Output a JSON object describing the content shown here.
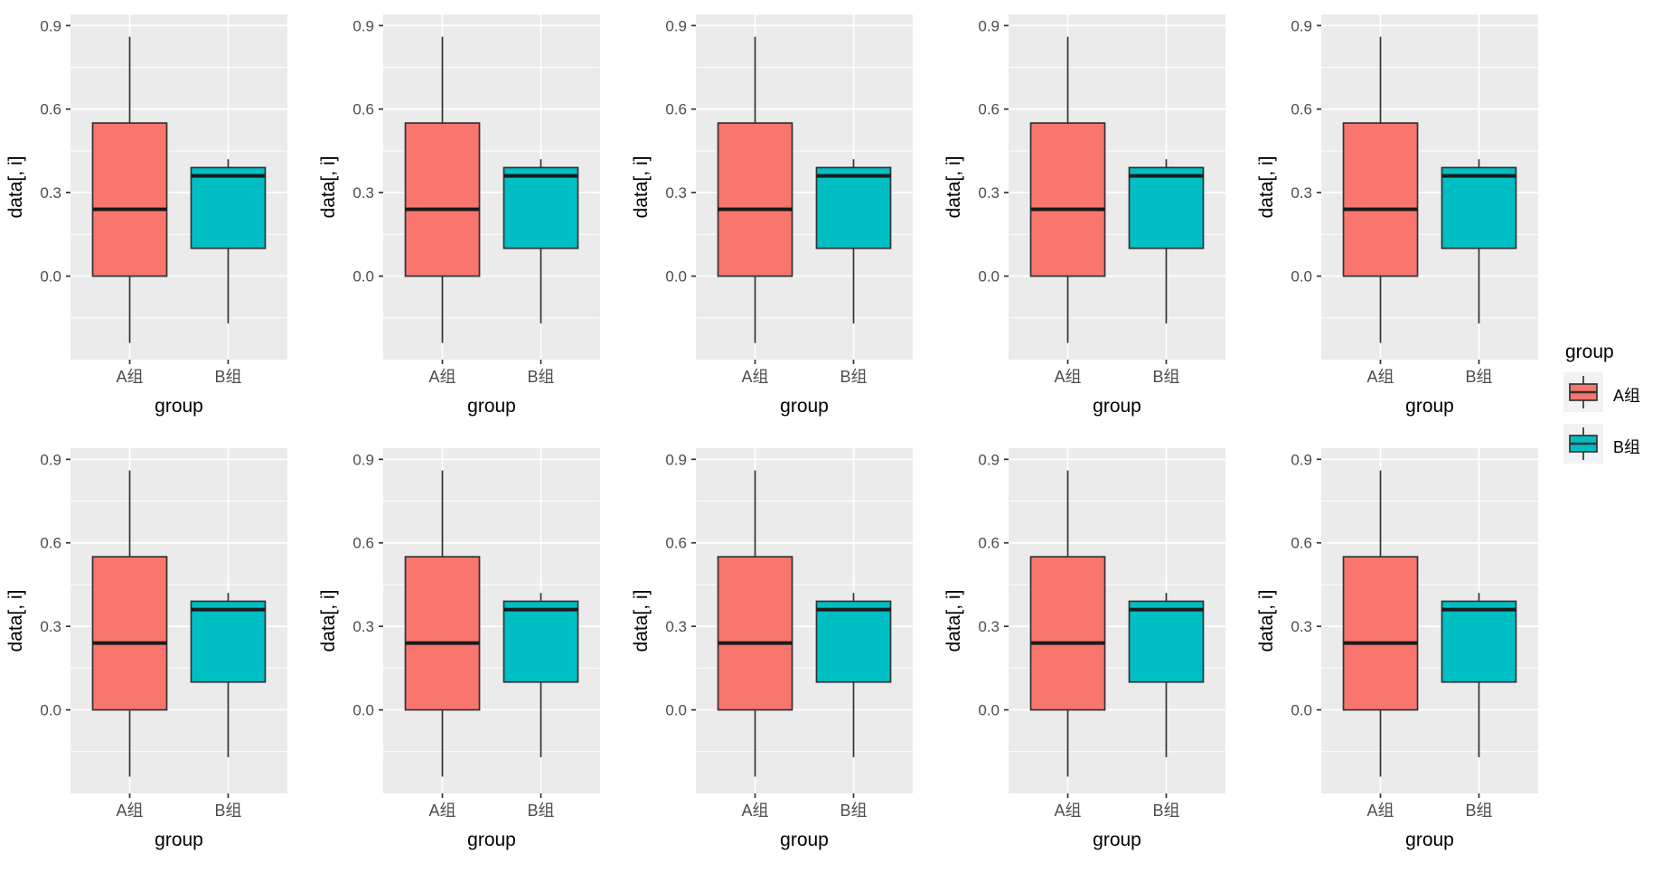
{
  "style": {
    "background": "#FFFFFF",
    "panel_bg": "#EBEBEB",
    "grid_major_color": "#FFFFFF",
    "grid_minor_color": "#FFFFFF",
    "tick_color": "#333333",
    "tick_text_color": "#4D4D4D",
    "axis_title_color": "#000000",
    "box_stroke": "#333333",
    "median_color": "#1A1A1A",
    "legend_key_bg": "#F2F2F2"
  },
  "chart_data": {
    "type": "boxplot",
    "grid": {
      "rows": 2,
      "cols": 5,
      "panels": 10,
      "identical_panels": true
    },
    "title": "",
    "xlabel": "group",
    "ylabel": "data[, i]",
    "categories": [
      "A组",
      "B组"
    ],
    "yticks": [
      0.0,
      0.3,
      0.6,
      0.9
    ],
    "ytick_labels": [
      "0.0",
      "0.3",
      "0.6",
      "0.9"
    ],
    "yticks_minor": [
      -0.15,
      0.15,
      0.45,
      0.75
    ],
    "ylim": [
      -0.3,
      0.94
    ],
    "grid_on": true,
    "legend_position": "right",
    "series": [
      {
        "name": "A组",
        "fill": "#F8766D",
        "stats": {
          "whisker_low": -0.24,
          "q1": 0.0,
          "median": 0.24,
          "q3": 0.55,
          "whisker_high": 0.86
        }
      },
      {
        "name": "B组",
        "fill": "#00BFC4",
        "stats": {
          "whisker_low": -0.17,
          "q1": 0.1,
          "median": 0.36,
          "q3": 0.39,
          "whisker_high": 0.42
        }
      }
    ]
  },
  "legend": {
    "title": "group",
    "items": [
      {
        "label": "A组",
        "color": "#F8766D"
      },
      {
        "label": "B组",
        "color": "#00BFC4"
      }
    ]
  }
}
